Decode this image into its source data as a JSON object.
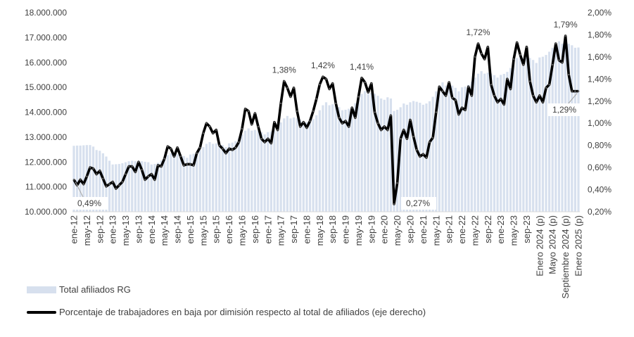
{
  "chart_data": {
    "type": "bar+line",
    "left_axis": {
      "ylim": [
        10000000,
        18000000
      ],
      "ticks": [
        "10.000.000",
        "11.000.000",
        "12.000.000",
        "13.000.000",
        "14.000.000",
        "15.000.000",
        "16.000.000",
        "17.000.000",
        "18.000.000"
      ]
    },
    "right_axis": {
      "ylim": [
        0.2,
        2.0
      ],
      "ticks": [
        "0,20%",
        "0,40%",
        "0,60%",
        "0,80%",
        "1,00%",
        "1,20%",
        "1,40%",
        "1,60%",
        "1,80%",
        "2,00%"
      ]
    },
    "x_tick_labels": [
      "ene-12",
      "may-12",
      "sep-12",
      "ene-13",
      "may-13",
      "sep-13",
      "ene-14",
      "may-14",
      "sep-14",
      "ene-15",
      "may-15",
      "sep-15",
      "ene-16",
      "may-16",
      "sep-16",
      "ene-17",
      "may-17",
      "sep-17",
      "ene-18",
      "may-18",
      "sep-18",
      "ene-19",
      "may-19",
      "sep-19",
      "ene-20",
      "may-20",
      "sep-20",
      "ene-21",
      "may-21",
      "sep-21",
      "ene-22",
      "may-22",
      "sep-22",
      "ene-23",
      "may-23",
      "sep-23",
      "Enero 2024 (p)",
      "Mayo 2024 (p)",
      "Septiembre 2024 (p)",
      "Enero 2025 (p)"
    ],
    "x_tick_every_n_points": 4,
    "grid": false,
    "legend_placement": "bottom-left",
    "series": [
      {
        "name": "Total afiliados RG",
        "type": "bar",
        "axis": "left",
        "color": "#d7e0ee",
        "values": [
          12650000,
          12660000,
          12660000,
          12670000,
          12680000,
          12680000,
          12620000,
          12480000,
          12450000,
          12350000,
          12220000,
          12050000,
          11900000,
          11910000,
          11920000,
          11950000,
          11990000,
          12030000,
          12050000,
          12030000,
          12040000,
          12030000,
          12010000,
          11990000,
          11900000,
          11920000,
          11970000,
          12060000,
          12170000,
          12280000,
          12350000,
          12280000,
          12310000,
          12280000,
          12240000,
          12170000,
          12300000,
          12330000,
          12380000,
          12480000,
          12600000,
          12730000,
          12800000,
          12730000,
          12750000,
          12730000,
          12680000,
          12600000,
          12750000,
          12780000,
          12840000,
          12960000,
          13110000,
          13260000,
          13350000,
          13260000,
          13290000,
          13260000,
          13200000,
          13110000,
          13200000,
          13230000,
          13300000,
          13430000,
          13590000,
          13750000,
          13850000,
          13750000,
          13790000,
          13750000,
          13690000,
          13590000,
          13600000,
          13640000,
          13720000,
          13880000,
          14080000,
          14280000,
          14400000,
          14280000,
          14320000,
          14280000,
          14200000,
          14080000,
          14100000,
          14140000,
          14210000,
          14360000,
          14550000,
          14740000,
          14850000,
          14740000,
          14780000,
          14740000,
          14660000,
          14550000,
          14500000,
          14600000,
          14550000,
          14050000,
          14100000,
          14200000,
          14350000,
          14300000,
          14400000,
          14450000,
          14420000,
          14380000,
          14300000,
          14350000,
          14440000,
          14620000,
          14840000,
          15070000,
          15200000,
          15070000,
          15110000,
          15070000,
          14980000,
          14840000,
          15000000,
          15030000,
          15100000,
          15230000,
          15390000,
          15550000,
          15650000,
          15550000,
          15590000,
          15550000,
          15490000,
          15390000,
          15500000,
          15540000,
          15620000,
          15780000,
          15980000,
          16180000,
          16300000,
          16180000,
          16220000,
          16180000,
          16100000,
          15980000,
          16200000,
          16230000,
          16300000,
          16430000,
          16590000,
          16750000,
          16850000,
          16750000,
          16790000,
          16750000,
          16690000,
          16590000,
          16600000
        ]
      },
      {
        "name": "Porcentaje de trabajadores en baja por dimisión respecto al total de afiliados (eje derecho)",
        "type": "line",
        "axis": "right",
        "color": "#000000",
        "values": [
          0.49,
          0.44,
          0.49,
          0.45,
          0.52,
          0.6,
          0.59,
          0.54,
          0.57,
          0.5,
          0.43,
          0.45,
          0.47,
          0.41,
          0.44,
          0.47,
          0.54,
          0.61,
          0.61,
          0.56,
          0.65,
          0.58,
          0.49,
          0.52,
          0.54,
          0.49,
          0.62,
          0.61,
          0.68,
          0.79,
          0.77,
          0.7,
          0.78,
          0.7,
          0.62,
          0.63,
          0.63,
          0.62,
          0.73,
          0.78,
          0.91,
          1.0,
          0.97,
          0.91,
          0.94,
          0.8,
          0.77,
          0.73,
          0.77,
          0.76,
          0.78,
          0.83,
          0.95,
          1.13,
          1.11,
          0.99,
          1.09,
          0.97,
          0.86,
          0.83,
          0.86,
          0.82,
          1.01,
          0.94,
          1.18,
          1.38,
          1.32,
          1.24,
          1.32,
          1.11,
          0.97,
          1.01,
          0.96,
          1.02,
          1.11,
          1.22,
          1.35,
          1.42,
          1.4,
          1.31,
          1.36,
          1.18,
          1.05,
          1.0,
          1.02,
          0.97,
          1.14,
          1.05,
          1.24,
          1.41,
          1.37,
          1.28,
          1.36,
          1.1,
          1.0,
          0.94,
          0.97,
          0.94,
          1.07,
          0.27,
          0.46,
          0.86,
          0.94,
          0.86,
          1.03,
          0.88,
          0.76,
          0.7,
          0.72,
          0.69,
          0.83,
          0.87,
          1.1,
          1.33,
          1.29,
          1.25,
          1.37,
          1.23,
          1.21,
          1.08,
          1.14,
          1.12,
          1.33,
          1.25,
          1.6,
          1.72,
          1.63,
          1.58,
          1.69,
          1.35,
          1.25,
          1.19,
          1.22,
          1.17,
          1.4,
          1.31,
          1.58,
          1.73,
          1.62,
          1.53,
          1.69,
          1.38,
          1.25,
          1.19,
          1.25,
          1.19,
          1.32,
          1.35,
          1.53,
          1.72,
          1.57,
          1.55,
          1.79,
          1.44,
          1.29,
          1.29,
          1.29
        ]
      }
    ],
    "annotations": [
      {
        "text": "0,49%",
        "point": 0
      },
      {
        "text": "1,38%",
        "point": 65
      },
      {
        "text": "1,42%",
        "point": 77
      },
      {
        "text": "1,41%",
        "point": 89
      },
      {
        "text": "0,27%",
        "point": 99
      },
      {
        "text": "1,72%",
        "point": 125
      },
      {
        "text": "1,79%",
        "point": 152
      },
      {
        "text": "1,29%",
        "point": 156
      }
    ]
  },
  "legend": {
    "bar_label": "Total afiliados RG",
    "line_label": "Porcentaje de trabajadores en baja por dimisión respecto al total de afiliados (eje derecho)"
  }
}
